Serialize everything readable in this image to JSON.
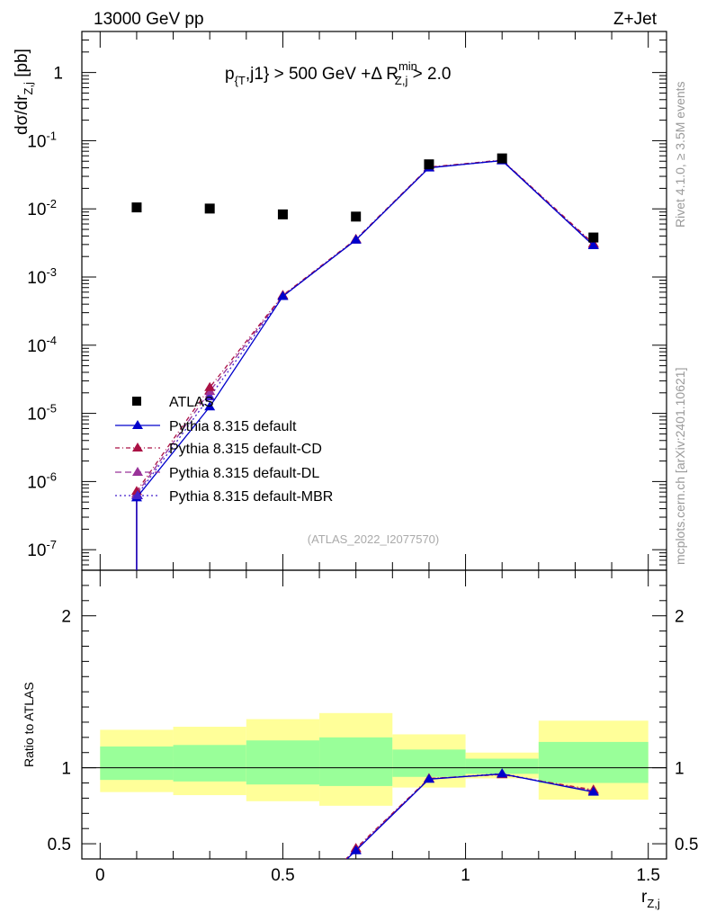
{
  "header": {
    "left": "13000 GeV pp",
    "right": "Z+Jet",
    "cut_main": "p",
    "cut_sub": "{T",
    "cut_mid": ",j1} > 500 GeV +Δ R",
    "cut_sup": "min",
    "cut_sub2": "Z,j",
    "cut_end": " > 2.0"
  },
  "side": {
    "rivet": "Rivet 4.1.0, ≥ 3.5M events",
    "mcplots": "mcplots.cern.ch [arXiv:2401.10621]"
  },
  "watermark": "(ATLAS_2022_I2077570)",
  "axes": {
    "ylabel_main": "dσ/dr",
    "ylabel_main_sub": "Z,j",
    "ylabel_main_unit": " [pb]",
    "ylabel_ratio": "Ratio to ATLAS",
    "xlabel": "r",
    "xlabel_sub": "Z,j"
  },
  "colors": {
    "data": "#000000",
    "default": "#0000cc",
    "cd": "#aa1144",
    "dl": "#993399",
    "mbr": "#4422cc",
    "band_inner": "#99ff99",
    "band_outer": "#ffff99"
  },
  "chart_data": [
    {
      "type": "scatter",
      "title": "dσ/dr_Z,j",
      "xlabel": "r_Z,j",
      "ylabel": "dσ/dr_Z,j [pb]",
      "yscale": "log",
      "xlim": [
        -0.05,
        1.55
      ],
      "ylim": [
        5e-08,
        4
      ],
      "x_ticks": [
        "0",
        "0.5",
        "1",
        "1.5"
      ],
      "y_ticks": [
        {
          "base": "10",
          "exp": "-7"
        },
        {
          "base": "10",
          "exp": "-6"
        },
        {
          "base": "10",
          "exp": "-5"
        },
        {
          "base": "10",
          "exp": "-4"
        },
        {
          "base": "10",
          "exp": "-3"
        },
        {
          "base": "10",
          "exp": "-2"
        },
        {
          "base": "10",
          "exp": "-1"
        },
        {
          "base": "1",
          "exp": ""
        }
      ],
      "legend": [
        "ATLAS",
        "Pythia 8.315 default",
        "Pythia 8.315 default-CD",
        "Pythia 8.315 default-DL",
        "Pythia 8.315 default-MBR"
      ],
      "series": [
        {
          "name": "ATLAS",
          "x": [
            0.1,
            0.3,
            0.5,
            0.7,
            0.9,
            1.1,
            1.35
          ],
          "values": [
            0.0105,
            0.0101,
            0.0083,
            0.0077,
            0.045,
            0.055,
            0.0038
          ]
        },
        {
          "name": "Pythia 8.315 default",
          "x": [
            0.1,
            0.3,
            0.5,
            0.7,
            0.9,
            1.1,
            1.35
          ],
          "values": [
            5.8e-07,
            1.25e-05,
            0.00052,
            0.0035,
            0.04,
            0.051,
            0.0029
          ]
        },
        {
          "name": "Pythia 8.315 default-CD",
          "x": [
            0.1,
            0.3,
            0.5,
            0.7,
            0.9,
            1.1,
            1.35
          ],
          "values": [
            7.2e-07,
            2.4e-05,
            0.00054,
            0.0036,
            0.041,
            0.052,
            0.0031
          ]
        },
        {
          "name": "Pythia 8.315 default-DL",
          "x": [
            0.1,
            0.3,
            0.5,
            0.7,
            0.9,
            1.1,
            1.35
          ],
          "values": [
            6.6e-07,
            2.1e-05,
            0.00053,
            0.0035,
            0.0405,
            0.0515,
            0.003
          ]
        },
        {
          "name": "Pythia 8.315 default-MBR",
          "x": [
            0.1,
            0.3,
            0.5,
            0.7,
            0.9,
            1.1,
            1.35
          ],
          "values": [
            6.2e-07,
            1.75e-05,
            0.00052,
            0.0035,
            0.0402,
            0.051,
            0.0029
          ]
        }
      ]
    },
    {
      "type": "line",
      "title": "Ratio to ATLAS",
      "xlabel": "r_Z,j",
      "ylabel": "Ratio to ATLAS",
      "xlim": [
        -0.05,
        1.55
      ],
      "ylim": [
        0.4,
        2.3
      ],
      "x_ticks": [
        "0",
        "0.5",
        "1",
        "1.5"
      ],
      "y_ticks": [
        "0.5",
        "1",
        "2"
      ],
      "bins": [
        [
          0,
          0.2
        ],
        [
          0.2,
          0.4
        ],
        [
          0.4,
          0.6
        ],
        [
          0.6,
          0.8
        ],
        [
          0.8,
          1.0
        ],
        [
          1.0,
          1.2
        ],
        [
          1.2,
          1.5
        ]
      ],
      "band_inner": [
        [
          0.92,
          1.14
        ],
        [
          0.91,
          1.15
        ],
        [
          0.89,
          1.18
        ],
        [
          0.88,
          1.2
        ],
        [
          0.94,
          1.12
        ],
        [
          0.96,
          1.06
        ],
        [
          0.9,
          1.17
        ]
      ],
      "band_outer": [
        [
          0.84,
          1.25
        ],
        [
          0.82,
          1.27
        ],
        [
          0.78,
          1.32
        ],
        [
          0.75,
          1.36
        ],
        [
          0.87,
          1.22
        ],
        [
          0.93,
          1.1
        ],
        [
          0.79,
          1.31
        ]
      ],
      "series": [
        {
          "name": "Pythia 8.315 default",
          "x": [
            0.7,
            0.9,
            1.1,
            1.35
          ],
          "values": [
            0.455,
            0.925,
            0.96,
            0.84
          ]
        },
        {
          "name": "Pythia 8.315 default-CD",
          "x": [
            0.7,
            0.9,
            1.1,
            1.35
          ],
          "values": [
            0.47,
            0.93,
            0.955,
            0.855
          ]
        },
        {
          "name": "Pythia 8.315 default-DL",
          "x": [
            0.7,
            0.9,
            1.1,
            1.35
          ],
          "values": [
            0.462,
            0.928,
            0.958,
            0.848
          ]
        },
        {
          "name": "Pythia 8.315 default-MBR",
          "x": [
            0.7,
            0.9,
            1.1,
            1.35
          ],
          "values": [
            0.458,
            0.926,
            0.962,
            0.845
          ]
        }
      ]
    }
  ]
}
